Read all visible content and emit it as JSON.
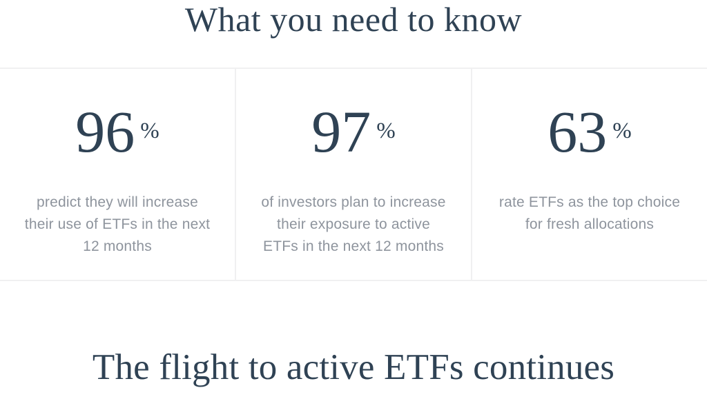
{
  "intro": {
    "title": "What you need to know"
  },
  "stats": {
    "items": [
      {
        "value": "96",
        "unit": "%",
        "description": "predict they will increase their use of ETFs in the next 12 months",
        "lines": [
          "predict they will increase",
          "their use of ETFs in the next",
          "12 months"
        ]
      },
      {
        "value": "97",
        "unit": "%",
        "description": "of investors plan to increase their exposure to active ETFs in the next 12 months",
        "lines": [
          "of investors plan to increase",
          "their exposure to active",
          "ETFs in the next 12 months"
        ]
      },
      {
        "value": "63",
        "unit": "%",
        "description": "rate ETFs as the top choice for fresh allocations",
        "lines": [
          "rate ETFs as the top choice",
          "for fresh allocations"
        ]
      }
    ]
  },
  "next_section": {
    "title": "The flight to active ETFs continues"
  },
  "colors": {
    "heading": "#2f4254",
    "body_text": "#8e949d",
    "divider": "#f0f0f1",
    "background": "#ffffff"
  }
}
